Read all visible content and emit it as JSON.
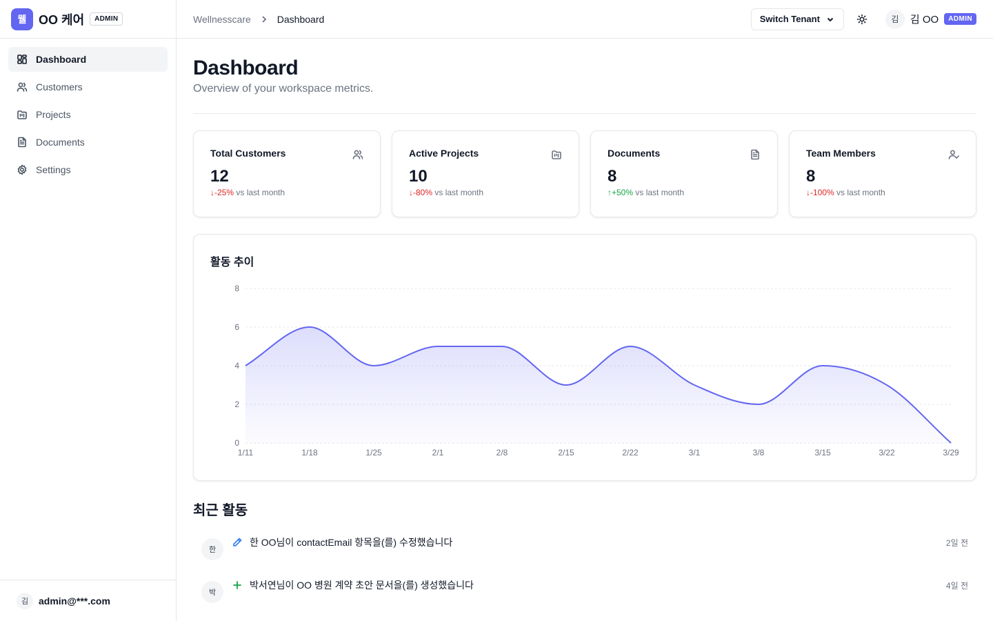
{
  "brand": {
    "logo_char": "웰",
    "name": "OO 케어",
    "badge": "ADMIN"
  },
  "sidebar": {
    "items": [
      {
        "label": "Dashboard",
        "icon": "layout-dashboard-icon",
        "active": true
      },
      {
        "label": "Customers",
        "icon": "users-icon",
        "active": false
      },
      {
        "label": "Projects",
        "icon": "folder-kanban-icon",
        "active": false
      },
      {
        "label": "Documents",
        "icon": "file-text-icon",
        "active": false
      },
      {
        "label": "Settings",
        "icon": "gear-icon",
        "active": false
      }
    ],
    "footer": {
      "avatar": "김",
      "email": "admin@***.com"
    }
  },
  "header": {
    "breadcrumb": {
      "root": "Wellnesscare",
      "current": "Dashboard"
    },
    "switch_tenant": "Switch Tenant",
    "user": {
      "avatar": "김",
      "name": "김 OO",
      "badge": "ADMIN"
    }
  },
  "page": {
    "title": "Dashboard",
    "subtitle": "Overview of your workspace metrics."
  },
  "stats": [
    {
      "label": "Total Customers",
      "value": "12",
      "arrow": "↓",
      "change": "-25%",
      "direction": "down",
      "suffix": "vs last month",
      "icon": "users-icon"
    },
    {
      "label": "Active Projects",
      "value": "10",
      "arrow": "↓",
      "change": "-80%",
      "direction": "down",
      "suffix": "vs last month",
      "icon": "folder-kanban-icon"
    },
    {
      "label": "Documents",
      "value": "8",
      "arrow": "↑",
      "change": "+50%",
      "direction": "up",
      "suffix": "vs last month",
      "icon": "file-text-icon"
    },
    {
      "label": "Team Members",
      "value": "8",
      "arrow": "↓",
      "change": "-100%",
      "direction": "down",
      "suffix": "vs last month",
      "icon": "user-check-icon"
    }
  ],
  "chart_data": {
    "type": "area",
    "title": "활동 추이",
    "xlabel": "",
    "ylabel": "",
    "x": [
      "1/11",
      "1/18",
      "1/25",
      "2/1",
      "2/8",
      "2/15",
      "2/22",
      "3/1",
      "3/8",
      "3/15",
      "3/22",
      "3/29"
    ],
    "series": [
      {
        "values": [
          4,
          6,
          4,
          5,
          5,
          3,
          5,
          3,
          2,
          4,
          3,
          0
        ]
      }
    ],
    "yticks": [
      0,
      2,
      4,
      6,
      8
    ],
    "ylim": [
      0,
      8
    ],
    "grid": "horizontal-dashed",
    "color": "#6366f1"
  },
  "activity": {
    "title": "최근 활동",
    "items": [
      {
        "avatar": "한",
        "icon": "pencil-icon",
        "icon_color": "#3b82f6",
        "text": "한 OO님이 contactEmail 항목을(를) 수정했습니다",
        "time": "2일 전"
      },
      {
        "avatar": "박",
        "icon": "plus-icon",
        "icon_color": "#16a34a",
        "text": "박서연님이 OO 병원 계약 초안 문서을(를) 생성했습니다",
        "time": "4일 전"
      }
    ]
  }
}
